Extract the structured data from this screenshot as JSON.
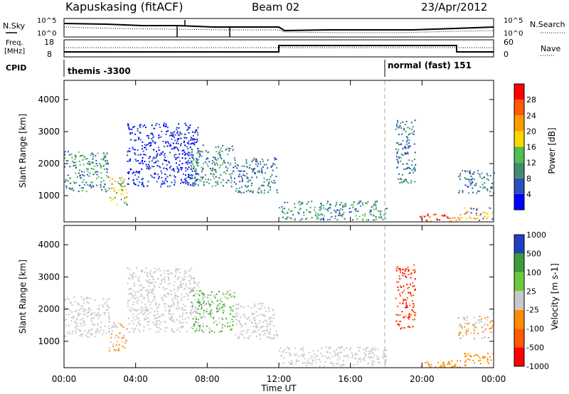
{
  "header": {
    "station": "Kapuskasing (fitACF)",
    "beam": "Beam 02",
    "date": "23/Apr/2012"
  },
  "top_panels": {
    "nsky_label": "N.Sky",
    "nsearch_label": "N.Search",
    "nsky_ticks": [
      "10^5",
      "10^0"
    ],
    "nsearch_ticks": [
      "10^5",
      "10^0"
    ],
    "freq_label_1": "Freq.",
    "freq_label_2": "[MHz]",
    "freq_ticks": [
      "18",
      "8"
    ],
    "nave_label": "Nave",
    "nave_ticks": [
      "60",
      "0"
    ],
    "cpid_label": "CPID",
    "cpid_1": "themis -3300",
    "cpid_2": "normal (fast) 151"
  },
  "chart_data": [
    {
      "type": "heatmap",
      "title": "",
      "xlabel": "Time UT",
      "ylabel": "Slant Range [km]",
      "x_ticks": [
        "00:00",
        "04:00",
        "08:00",
        "12:00",
        "16:00",
        "20:00",
        "00:00"
      ],
      "y_ticks": [
        "1000",
        "2000",
        "3000",
        "4000"
      ],
      "x_range_hours": [
        0,
        24
      ],
      "y_range_km": [
        180,
        4600
      ],
      "colorbar": {
        "label": "Power [dB]",
        "ticks": [
          "4",
          "8",
          "12",
          "16",
          "20",
          "24",
          "28"
        ],
        "colors": [
          "#0000ff",
          "#2a4fc0",
          "#3f8f6e",
          "#4fbf4f",
          "#ffd700",
          "#ff9a00",
          "#ff5a00",
          "#ff0000"
        ]
      }
    },
    {
      "type": "heatmap",
      "title": "",
      "xlabel": "Time UT",
      "ylabel": "Slant Range [km]",
      "x_ticks": [
        "00:00",
        "04:00",
        "08:00",
        "12:00",
        "16:00",
        "20:00",
        "00:00"
      ],
      "y_ticks": [
        "1000",
        "2000",
        "3000",
        "4000"
      ],
      "x_range_hours": [
        0,
        24
      ],
      "y_range_km": [
        180,
        4600
      ],
      "colorbar": {
        "label": "Velocity [m s-1]",
        "ticks": [
          "1000",
          "500",
          "100",
          "25",
          "-25",
          "-100",
          "-500",
          "-1000"
        ],
        "colors": [
          "#2040c0",
          "#3c9c3c",
          "#6acb3a",
          "#c8c8c8",
          "#ff8c00",
          "#ff5a00",
          "#ff0000"
        ]
      }
    }
  ],
  "scatter_regions": {
    "power": [
      {
        "t0": 0.0,
        "t1": 2.5,
        "r0": 1150,
        "r1": 2400,
        "colors": [
          "#2a4fc0",
          "#3f8f6e",
          "#4fbf4f"
        ]
      },
      {
        "t0": 2.5,
        "t1": 3.5,
        "r0": 700,
        "r1": 1600,
        "colors": [
          "#3f8f6e",
          "#ffd700",
          "#ff9a00"
        ]
      },
      {
        "t0": 3.5,
        "t1": 7.5,
        "r0": 1300,
        "r1": 3300,
        "colors": [
          "#2a4fc0",
          "#0000ff"
        ]
      },
      {
        "t0": 7.0,
        "t1": 9.5,
        "r0": 1300,
        "r1": 2600,
        "colors": [
          "#2a4fc0",
          "#3f8f6e",
          "#4fbf4f"
        ]
      },
      {
        "t0": 9.5,
        "t1": 11.9,
        "r0": 1100,
        "r1": 2200,
        "colors": [
          "#2a4fc0",
          "#3f8f6e"
        ]
      },
      {
        "t0": 12.0,
        "t1": 18.0,
        "r0": 250,
        "r1": 850,
        "colors": [
          "#3f8f6e",
          "#2a4fc0",
          "#4fbf4f"
        ]
      },
      {
        "t0": 19.8,
        "t1": 22.3,
        "r0": 200,
        "r1": 450,
        "colors": [
          "#ff0000",
          "#ff5a00",
          "#ff9a00"
        ]
      },
      {
        "t0": 22.3,
        "t1": 24.0,
        "r0": 250,
        "r1": 650,
        "colors": [
          "#2a4fc0",
          "#ffd700",
          "#ff9a00"
        ]
      },
      {
        "t0": 22.0,
        "t1": 24.0,
        "r0": 1100,
        "r1": 1800,
        "colors": [
          "#2a4fc0",
          "#3f8f6e"
        ]
      },
      {
        "t0": 18.5,
        "t1": 19.6,
        "r0": 1400,
        "r1": 3400,
        "colors": [
          "#2a4fc0",
          "#3f8f6e"
        ]
      }
    ],
    "velocity": [
      {
        "t0": 0.0,
        "t1": 2.5,
        "r0": 1150,
        "r1": 2400,
        "colors": [
          "#c8c8c8"
        ]
      },
      {
        "t0": 2.5,
        "t1": 3.5,
        "r0": 700,
        "r1": 1600,
        "colors": [
          "#ff8c00",
          "#c8c8c8"
        ]
      },
      {
        "t0": 3.5,
        "t1": 7.5,
        "r0": 1300,
        "r1": 3300,
        "colors": [
          "#c8c8c8"
        ]
      },
      {
        "t0": 7.0,
        "t1": 9.5,
        "r0": 1300,
        "r1": 2600,
        "colors": [
          "#6acb3a",
          "#3c9c3c",
          "#c8c8c8"
        ]
      },
      {
        "t0": 9.5,
        "t1": 11.9,
        "r0": 1100,
        "r1": 2200,
        "colors": [
          "#c8c8c8"
        ]
      },
      {
        "t0": 12.0,
        "t1": 18.0,
        "r0": 250,
        "r1": 850,
        "colors": [
          "#c8c8c8"
        ]
      },
      {
        "t0": 19.8,
        "t1": 22.3,
        "r0": 200,
        "r1": 450,
        "colors": [
          "#ff8c00"
        ]
      },
      {
        "t0": 22.3,
        "t1": 24.0,
        "r0": 250,
        "r1": 650,
        "colors": [
          "#ff8c00"
        ]
      },
      {
        "t0": 22.0,
        "t1": 24.0,
        "r0": 1100,
        "r1": 1800,
        "colors": [
          "#c8c8c8",
          "#ff8c00"
        ]
      },
      {
        "t0": 18.5,
        "t1": 19.6,
        "r0": 1400,
        "r1": 3400,
        "colors": [
          "#ff5a00",
          "#ff0000"
        ]
      }
    ]
  }
}
